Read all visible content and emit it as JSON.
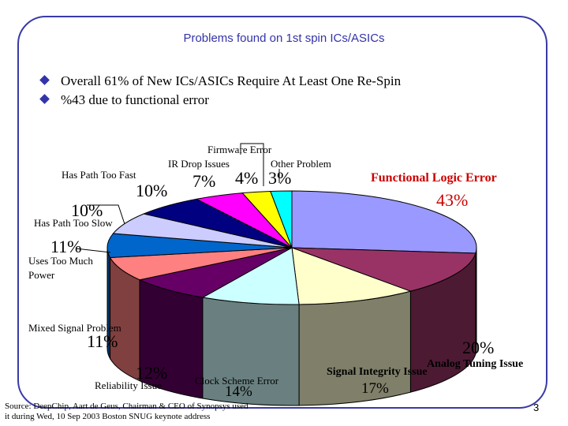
{
  "title": "Problems found on 1st spin ICs/ASICs",
  "bullets": [
    "Overall 61% of New ICs/ASICs Require At Least One Re-Spin",
    "%43 due to functional error"
  ],
  "chart_data": {
    "type": "pie",
    "categories": [
      "Functional Logic Error",
      "Analog Tuning Issue",
      "Signal Integrity Issue",
      "Clock Scheme Error",
      "Reliability Issue",
      "Mixed Signal Problem",
      "Uses Too Much Power",
      "Has Path Too Slow",
      "Has Path Too Fast",
      "IR Drop Issues",
      "Firmware Error",
      "Other Problem"
    ],
    "values": [
      43,
      20,
      17,
      14,
      12,
      11,
      11,
      10,
      10,
      7,
      4,
      3
    ],
    "value_labels": [
      "43%",
      "20%",
      "17%",
      "14%",
      "12%",
      "11%",
      "11%",
      "10%",
      "10%",
      "7%",
      "4%",
      "3%"
    ],
    "colors": [
      "#9999ff",
      "#993366",
      "#ffffcc",
      "#ccffff",
      "#660066",
      "#ff8080",
      "#0066cc",
      "#ccccff",
      "#000080",
      "#ff00ff",
      "#ffff00",
      "#00ffff"
    ],
    "side_colors": [
      "#4d4d80",
      "#4d1a33",
      "#80806a",
      "#6a8080",
      "#330033",
      "#804040",
      "#003366",
      "#6a6a80",
      "#000040",
      "#800080",
      "#808000",
      "#008080"
    ],
    "note": "values sum to more than 100%; slice angles are drawn proportionally"
  },
  "source": {
    "line1": "Source: DeepChip, Aart de Geus, Chairman & CEO of Synopsys used",
    "line2": "it during Wed, 10 Sep 2003 Boston SNUG keynote address"
  },
  "page_number": "3"
}
